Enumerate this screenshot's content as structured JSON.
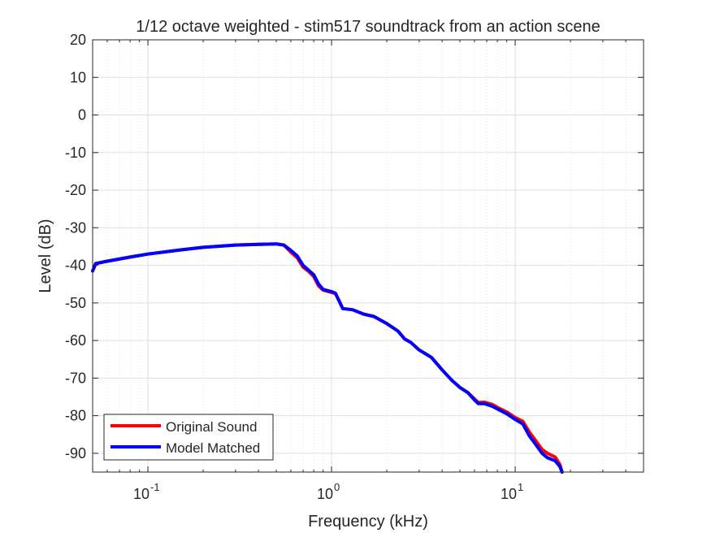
{
  "chart_data": {
    "type": "line",
    "title": "1/12 octave weighted - stim517 soundtrack from an action scene",
    "xlabel": "Frequency (kHz)",
    "ylabel": "Level (dB)",
    "xscale": "log",
    "xlim": [
      0.05,
      50
    ],
    "ylim": [
      -95,
      20
    ],
    "grid": true,
    "minor_grid": true,
    "legend_location": "bottom-left",
    "x_ticks": [
      {
        "value": 0.1,
        "base": "10",
        "exp": "-1"
      },
      {
        "value": 1,
        "base": "10",
        "exp": "0"
      },
      {
        "value": 10,
        "base": "10",
        "exp": "1"
      }
    ],
    "y_ticks": [
      20,
      10,
      0,
      -10,
      -20,
      -30,
      -40,
      -50,
      -60,
      -70,
      -80,
      -90
    ],
    "series": [
      {
        "name": "Original Sound",
        "color": "#ff0000",
        "points": [
          [
            0.05,
            -41.5
          ],
          [
            0.052,
            -39.5
          ],
          [
            0.06,
            -38.9
          ],
          [
            0.08,
            -37.8
          ],
          [
            0.1,
            -37.0
          ],
          [
            0.15,
            -35.9
          ],
          [
            0.2,
            -35.2
          ],
          [
            0.3,
            -34.6
          ],
          [
            0.4,
            -34.4
          ],
          [
            0.5,
            -34.3
          ],
          [
            0.55,
            -34.6
          ],
          [
            0.6,
            -36.5
          ],
          [
            0.65,
            -38.0
          ],
          [
            0.7,
            -40.5
          ],
          [
            0.75,
            -41.6
          ],
          [
            0.8,
            -43.0
          ],
          [
            0.85,
            -45.5
          ],
          [
            0.9,
            -46.6
          ],
          [
            1.0,
            -47.2
          ],
          [
            1.05,
            -47.5
          ],
          [
            1.1,
            -49.5
          ],
          [
            1.15,
            -51.5
          ],
          [
            1.3,
            -51.8
          ],
          [
            1.5,
            -53.0
          ],
          [
            1.7,
            -53.6
          ],
          [
            2.0,
            -55.5
          ],
          [
            2.3,
            -57.5
          ],
          [
            2.5,
            -59.6
          ],
          [
            2.7,
            -60.5
          ],
          [
            3.0,
            -62.5
          ],
          [
            3.5,
            -64.5
          ],
          [
            4.0,
            -67.8
          ],
          [
            4.5,
            -70.5
          ],
          [
            5.0,
            -72.5
          ],
          [
            5.5,
            -73.8
          ],
          [
            6.0,
            -75.5
          ],
          [
            6.3,
            -76.5
          ],
          [
            6.8,
            -76.4
          ],
          [
            7.5,
            -77.0
          ],
          [
            8.0,
            -77.8
          ],
          [
            9.0,
            -79.0
          ],
          [
            10.0,
            -80.5
          ],
          [
            11.0,
            -81.5
          ],
          [
            12.0,
            -84.5
          ],
          [
            13.0,
            -86.8
          ],
          [
            14.0,
            -89.0
          ],
          [
            15.0,
            -90.0
          ],
          [
            16.5,
            -91.0
          ],
          [
            17.5,
            -93.0
          ],
          [
            18.0,
            -95.0
          ]
        ]
      },
      {
        "name": "Model Matched",
        "color": "#0000ff",
        "points": [
          [
            0.05,
            -41.5
          ],
          [
            0.052,
            -39.5
          ],
          [
            0.06,
            -38.9
          ],
          [
            0.08,
            -37.8
          ],
          [
            0.1,
            -37.0
          ],
          [
            0.15,
            -35.9
          ],
          [
            0.2,
            -35.2
          ],
          [
            0.3,
            -34.6
          ],
          [
            0.4,
            -34.4
          ],
          [
            0.5,
            -34.3
          ],
          [
            0.55,
            -34.6
          ],
          [
            0.6,
            -36.0
          ],
          [
            0.65,
            -37.5
          ],
          [
            0.7,
            -40.0
          ],
          [
            0.75,
            -41.3
          ],
          [
            0.8,
            -42.5
          ],
          [
            0.85,
            -45.0
          ],
          [
            0.9,
            -46.4
          ],
          [
            1.0,
            -47.0
          ],
          [
            1.05,
            -47.4
          ],
          [
            1.1,
            -49.5
          ],
          [
            1.15,
            -51.5
          ],
          [
            1.3,
            -51.8
          ],
          [
            1.5,
            -53.0
          ],
          [
            1.7,
            -53.6
          ],
          [
            2.0,
            -55.5
          ],
          [
            2.3,
            -57.5
          ],
          [
            2.5,
            -59.6
          ],
          [
            2.7,
            -60.5
          ],
          [
            3.0,
            -62.5
          ],
          [
            3.5,
            -64.5
          ],
          [
            4.0,
            -67.8
          ],
          [
            4.5,
            -70.5
          ],
          [
            5.0,
            -72.5
          ],
          [
            5.5,
            -73.8
          ],
          [
            6.0,
            -75.8
          ],
          [
            6.3,
            -76.8
          ],
          [
            6.8,
            -76.8
          ],
          [
            7.5,
            -77.5
          ],
          [
            8.0,
            -78.2
          ],
          [
            9.0,
            -79.5
          ],
          [
            10.0,
            -81.0
          ],
          [
            11.0,
            -82.2
          ],
          [
            12.0,
            -85.5
          ],
          [
            13.0,
            -87.8
          ],
          [
            14.0,
            -90.0
          ],
          [
            15.0,
            -91.2
          ],
          [
            16.5,
            -92.0
          ],
          [
            17.5,
            -93.5
          ],
          [
            18.0,
            -95.0
          ]
        ]
      }
    ]
  }
}
